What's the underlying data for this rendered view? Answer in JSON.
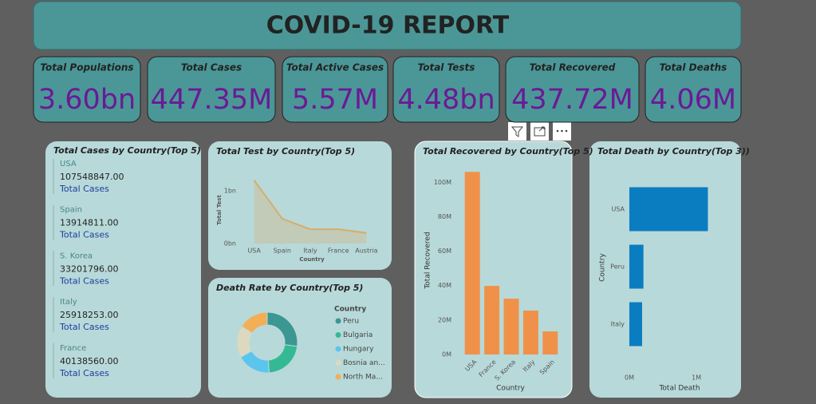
{
  "header": {
    "title": "COVID-19 REPORT"
  },
  "kpis": [
    {
      "label": "Total Populations",
      "value": "3.60bn"
    },
    {
      "label": "Total Cases",
      "value": "447.35M"
    },
    {
      "label": "Total Active Cases",
      "value": "5.57M"
    },
    {
      "label": "Total Tests",
      "value": "4.48bn"
    },
    {
      "label": "Total Recovered",
      "value": "437.72M"
    },
    {
      "label": "Total Deaths",
      "value": "4.06M"
    }
  ],
  "cases_card": {
    "title": "Total Cases by Country(Top 5)",
    "rows": [
      {
        "country": "USA",
        "value": "107548847.00",
        "label": "Total Cases"
      },
      {
        "country": "Spain",
        "value": "13914811.00",
        "label": "Total Cases"
      },
      {
        "country": "S. Korea",
        "value": "33201796.00",
        "label": "Total Cases"
      },
      {
        "country": "Italy",
        "value": "25918253.00",
        "label": "Total Cases"
      },
      {
        "country": "France",
        "value": "40138560.00",
        "label": "Total Cases"
      }
    ]
  },
  "chart_data": [
    {
      "type": "area",
      "title": "Total Test by Country(Top 5)",
      "x_label": "Country",
      "y_label": "Total Test",
      "categories": [
        "USA",
        "Spain",
        "Italy",
        "France",
        "Austria"
      ],
      "values": [
        1.2,
        0.47,
        0.27,
        0.27,
        0.2
      ],
      "color": "#d6ad6a",
      "ylim": [
        0,
        1.25
      ],
      "yticks": [
        {
          "value": 0,
          "label": "0bn"
        },
        {
          "value": 1,
          "label": "1bn"
        }
      ]
    },
    {
      "type": "donut",
      "title": "Death Rate by Country(Top 5)",
      "legend_title": "Country",
      "categories": [
        "Peru",
        "Bulgaria",
        "Hungary",
        "Bosnia an...",
        "North Ma..."
      ],
      "values": [
        27,
        22,
        18,
        17,
        16
      ],
      "colors": [
        "#3a9792",
        "#35b994",
        "#5cc5ee",
        "#ddd9c0",
        "#f4ae55"
      ]
    },
    {
      "type": "bar",
      "title": "Total Recovered by Country(Top 5)",
      "x_label": "Country",
      "y_label": "Total Recovered",
      "categories": [
        "USA",
        "France",
        "S. Korea",
        "Italy",
        "Spain"
      ],
      "values": [
        106,
        39.8,
        32.4,
        25.5,
        13.4
      ],
      "color": "#f0914a",
      "ylim": [
        0,
        108
      ],
      "yticks": [
        {
          "value": 0,
          "label": "0M"
        },
        {
          "value": 20,
          "label": "20M"
        },
        {
          "value": 40,
          "label": "40M"
        },
        {
          "value": 60,
          "label": "60M"
        },
        {
          "value": 80,
          "label": "80M"
        },
        {
          "value": 100,
          "label": "100M"
        }
      ]
    },
    {
      "type": "hbar",
      "title": "Total Death by Country(Top 3))",
      "x_label": "Total Death",
      "y_label": "Country",
      "categories": [
        "USA",
        "Peru",
        "Italy"
      ],
      "values": [
        1.17,
        0.21,
        0.19
      ],
      "color": "#0a7dc1",
      "xlim": [
        0,
        1.2
      ],
      "xticks": [
        {
          "value": 0,
          "label": "0M"
        },
        {
          "value": 1,
          "label": "1M"
        }
      ]
    }
  ]
}
